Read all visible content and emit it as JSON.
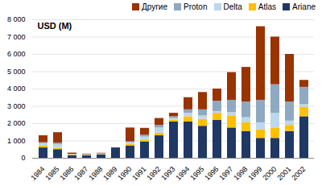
{
  "chart_data": {
    "type": "bar",
    "stacked": true,
    "ylabel": "USD (M)",
    "categories": [
      "1984",
      "1985",
      "1986",
      "1987",
      "1988",
      "1989",
      "1990",
      "1991",
      "1992",
      "1993",
      "1994",
      "1995",
      "1996",
      "1997",
      "1998",
      "1999",
      "2000",
      "2001",
      "2002"
    ],
    "series": [
      {
        "name": "Ariane",
        "color": "#1F3864",
        "values": [
          600,
          500,
          150,
          150,
          200,
          600,
          700,
          950,
          1300,
          2100,
          2100,
          1850,
          2200,
          1750,
          1550,
          1150,
          1150,
          1550,
          2400
        ]
      },
      {
        "name": "Atlas",
        "color": "#FFC000",
        "values": [
          100,
          80,
          30,
          20,
          20,
          0,
          100,
          80,
          150,
          100,
          300,
          400,
          400,
          700,
          500,
          500,
          600,
          350,
          550
        ]
      },
      {
        "name": "Delta",
        "color": "#BDD7EE",
        "values": [
          150,
          200,
          30,
          20,
          20,
          0,
          100,
          200,
          300,
          100,
          200,
          200,
          100,
          200,
          300,
          400,
          850,
          250,
          150
        ]
      },
      {
        "name": "Proton",
        "color": "#8EA9C1",
        "values": [
          50,
          100,
          20,
          20,
          20,
          0,
          50,
          100,
          150,
          100,
          200,
          350,
          600,
          700,
          900,
          1300,
          1650,
          1100,
          1000
        ]
      },
      {
        "name": "Другие",
        "color": "#993300",
        "values": [
          400,
          600,
          70,
          30,
          30,
          0,
          800,
          400,
          400,
          200,
          700,
          1000,
          700,
          1600,
          2000,
          4250,
          2750,
          2750,
          400
        ]
      }
    ],
    "ylim": [
      0,
      8000
    ],
    "yticks": [
      0,
      {
        "value": 1000,
        "label": "1 000"
      },
      {
        "value": 2000,
        "label": "2 000"
      },
      {
        "value": 3000,
        "label": "3 000"
      },
      {
        "value": 4000,
        "label": "4 000"
      },
      {
        "value": 5000,
        "label": "5 000"
      },
      {
        "value": 6000,
        "label": "6 000"
      },
      {
        "value": 7000,
        "label": "7 000"
      },
      {
        "value": 8000,
        "label": "8 000"
      }
    ],
    "grid": true,
    "legend": "upper right"
  }
}
